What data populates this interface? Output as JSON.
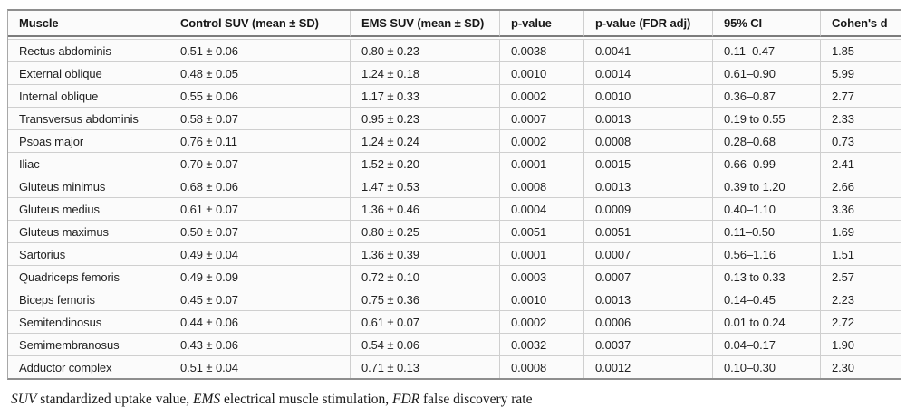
{
  "table": {
    "columns": [
      "Muscle",
      "Control SUV (mean ± SD)",
      "EMS SUV (mean ± SD)",
      "p-value",
      "p-value (FDR adj)",
      "95% CI",
      "Cohen's d"
    ],
    "rows": [
      [
        "Rectus abdominis",
        "0.51 ± 0.06",
        "0.80 ± 0.23",
        "0.0038",
        "0.0041",
        "0.11–0.47",
        "1.85"
      ],
      [
        "External oblique",
        "0.48 ± 0.05",
        "1.24 ± 0.18",
        "0.0010",
        "0.0014",
        "0.61–0.90",
        "5.99"
      ],
      [
        "Internal oblique",
        "0.55 ± 0.06",
        "1.17 ± 0.33",
        "0.0002",
        "0.0010",
        "0.36–0.87",
        "2.77"
      ],
      [
        "Transversus abdominis",
        "0.58 ± 0.07",
        "0.95 ± 0.23",
        "0.0007",
        "0.0013",
        "0.19 to 0.55",
        "2.33"
      ],
      [
        "Psoas major",
        "0.76 ± 0.11",
        "1.24 ± 0.24",
        "0.0002",
        "0.0008",
        "0.28–0.68",
        "0.73"
      ],
      [
        "Iliac",
        "0.70 ± 0.07",
        "1.52 ± 0.20",
        "0.0001",
        "0.0015",
        "0.66–0.99",
        "2.41"
      ],
      [
        "Gluteus minimus",
        "0.68 ± 0.06",
        "1.47 ± 0.53",
        "0.0008",
        "0.0013",
        "0.39 to 1.20",
        "2.66"
      ],
      [
        "Gluteus medius",
        "0.61 ± 0.07",
        "1.36 ± 0.46",
        "0.0004",
        "0.0009",
        "0.40–1.10",
        "3.36"
      ],
      [
        "Gluteus maximus",
        "0.50 ± 0.07",
        "0.80 ± 0.25",
        "0.0051",
        "0.0051",
        "0.11–0.50",
        "1.69"
      ],
      [
        "Sartorius",
        "0.49 ± 0.04",
        "1.36 ± 0.39",
        "0.0001",
        "0.0007",
        "0.56–1.16",
        "1.51"
      ],
      [
        "Quadriceps femoris",
        "0.49 ± 0.09",
        "0.72 ± 0.10",
        "0.0003",
        "0.0007",
        "0.13 to 0.33",
        "2.57"
      ],
      [
        "Biceps femoris",
        "0.45 ± 0.07",
        "0.75 ± 0.36",
        "0.0010",
        "0.0013",
        "0.14–0.45",
        "2.23"
      ],
      [
        "Semitendinosus",
        "0.44 ± 0.06",
        "0.61 ± 0.07",
        "0.0002",
        "0.0006",
        "0.01 to 0.24",
        "2.72"
      ],
      [
        "Semimembranosus",
        "0.43 ± 0.06",
        "0.54 ± 0.06",
        "0.0032",
        "0.0037",
        "0.04–0.17",
        "1.90"
      ],
      [
        "Adductor complex",
        "0.51 ± 0.04",
        "0.71 ± 0.13",
        "0.0008",
        "0.0012",
        "0.10–0.30",
        "2.30"
      ]
    ],
    "column_keys": [
      "muscle",
      "control-suv",
      "ems-suv",
      "p-value",
      "p-value-fdr",
      "ci",
      "cohens-d"
    ]
  },
  "footnote": {
    "segments": [
      {
        "text": "SUV",
        "italic": true
      },
      {
        "text": " standardized uptake value, ",
        "italic": false
      },
      {
        "text": "EMS",
        "italic": true
      },
      {
        "text": " electrical muscle stimulation, ",
        "italic": false
      },
      {
        "text": "FDR",
        "italic": true
      },
      {
        "text": " false discovery rate",
        "italic": false
      }
    ]
  },
  "colors": {
    "table_background": "#fbfbfb",
    "outer_border": "#8e8e8e",
    "header_rule": "#7c7c7c",
    "grid_line": "#cfcfcf",
    "text": "#1f1f1f"
  }
}
